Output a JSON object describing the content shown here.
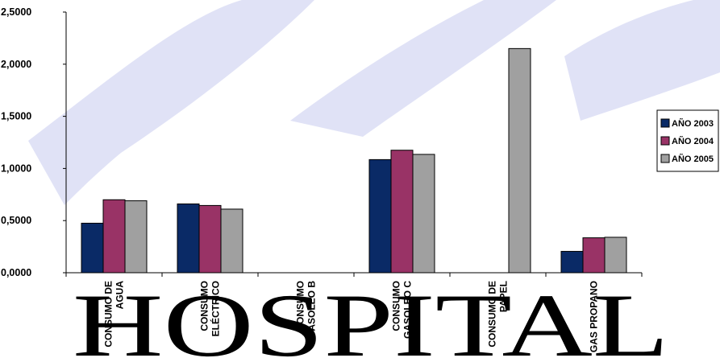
{
  "watermark": {
    "text": "HOSPITAL",
    "color": "#c9cde8",
    "stroke_color": "#c6cbee"
  },
  "chart_data": {
    "type": "bar",
    "categories": [
      "CONSUMO DE AGUA",
      "CONSUMO ELÉCTRICO",
      "CONSUMO GASOLEO B",
      "CONSUMO GASOLEO C",
      "CONSUMO DE PAPEL",
      "GAS PROPANO"
    ],
    "category_label_lines": [
      [
        "CONSUMO DE",
        "AGUA"
      ],
      [
        "CONSUMO",
        "ELÉCTRICO"
      ],
      [
        "CONSUMO",
        "GASOLEO B"
      ],
      [
        "CONSUMO",
        "GASOLEO C"
      ],
      [
        "CONSUMO DE",
        "PAPEL"
      ],
      [
        "GAS PROPANO"
      ]
    ],
    "series": [
      {
        "name": "AÑO 2003",
        "color": "#0a2a66",
        "values": [
          0.475,
          0.66,
          null,
          1.085,
          null,
          0.205
        ]
      },
      {
        "name": "AÑO 2004",
        "color": "#993366",
        "values": [
          0.7,
          0.645,
          null,
          1.175,
          null,
          0.335
        ]
      },
      {
        "name": "AÑO 2005",
        "color": "#a0a0a0",
        "values": [
          0.69,
          0.61,
          null,
          1.135,
          2.15,
          0.34
        ]
      }
    ],
    "ylim": [
      0,
      2.5
    ],
    "yticks": [
      "0,0000",
      "0,5000",
      "1,0000",
      "1,5000",
      "2,0000",
      "2,5000"
    ],
    "ytick_values": [
      0,
      0.5,
      1.0,
      1.5,
      2.0,
      2.5
    ],
    "grid": false,
    "legend_position": "right"
  }
}
